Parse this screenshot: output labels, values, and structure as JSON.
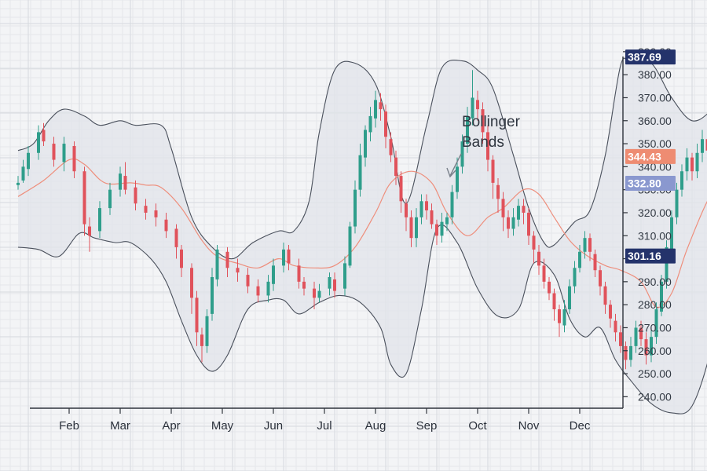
{
  "chart_data": {
    "type": "candlestick",
    "x": [
      "Feb",
      "Mar",
      "Apr",
      "May",
      "Jun",
      "Jul",
      "Aug",
      "Sep",
      "Oct",
      "Nov",
      "Dec"
    ],
    "y_ticks": [
      "240.00",
      "250.00",
      "260.00",
      "270.00",
      "280.00",
      "290.00",
      "300.00",
      "310.00",
      "320.00",
      "330.00",
      "340.00",
      "350.00",
      "360.00",
      "370.00",
      "380.00",
      "390.00"
    ],
    "ylim": [
      235,
      392
    ],
    "grid": true,
    "annotation": "Bollinger Bands",
    "price_labels": [
      {
        "value": "387.69",
        "color": "#24336b"
      },
      {
        "value": "344.43",
        "color": "#ee8c72"
      },
      {
        "value": "332.80",
        "color": "#8a98cf"
      },
      {
        "value": "301.16",
        "color": "#24336b"
      }
    ],
    "colors": {
      "up": "#2f9e8b",
      "down": "#e0525b",
      "middle_band": "#ee8e7c",
      "band_line": "#4a505c",
      "band_fill": "#e2e4ea"
    },
    "upper_band": [
      [
        0,
        347
      ],
      [
        0.3,
        350
      ],
      [
        0.6,
        360
      ],
      [
        0.9,
        365
      ],
      [
        1.3,
        362
      ],
      [
        1.6,
        358
      ],
      [
        2.0,
        360
      ],
      [
        2.3,
        358
      ],
      [
        2.8,
        358
      ],
      [
        3.0,
        348
      ],
      [
        3.4,
        318
      ],
      [
        3.8,
        305
      ],
      [
        4.2,
        300
      ],
      [
        4.6,
        307
      ],
      [
        5.1,
        312
      ],
      [
        5.4,
        312
      ],
      [
        5.7,
        325
      ],
      [
        5.9,
        355
      ],
      [
        6.2,
        382
      ],
      [
        6.6,
        385
      ],
      [
        7.0,
        376
      ],
      [
        7.3,
        353
      ],
      [
        7.6,
        324
      ],
      [
        8.0,
        358
      ],
      [
        8.3,
        383
      ],
      [
        8.7,
        386
      ],
      [
        9.0,
        382
      ],
      [
        9.3,
        374
      ],
      [
        9.7,
        345
      ],
      [
        10.0,
        322
      ],
      [
        10.3,
        307
      ],
      [
        10.5,
        306
      ],
      [
        10.9,
        316
      ],
      [
        11.2,
        321
      ],
      [
        11.5,
        345
      ],
      [
        11.8,
        384
      ],
      [
        12.0,
        385
      ],
      [
        12.4,
        385
      ],
      [
        12.8,
        370
      ],
      [
        13.2,
        360
      ],
      [
        13.6,
        365
      ],
      [
        14.0,
        376
      ],
      [
        14.3,
        383
      ],
      [
        14.6,
        388
      ],
      [
        14.8,
        387
      ]
    ],
    "middle_band": [
      [
        0,
        327
      ],
      [
        0.5,
        334
      ],
      [
        1.0,
        343
      ],
      [
        1.3,
        341
      ],
      [
        1.7,
        333
      ],
      [
        2.2,
        333
      ],
      [
        2.5,
        332
      ],
      [
        2.8,
        331
      ],
      [
        3.2,
        322
      ],
      [
        3.6,
        308
      ],
      [
        3.9,
        301
      ],
      [
        4.3,
        298
      ],
      [
        4.7,
        296
      ],
      [
        5.1,
        300
      ],
      [
        5.4,
        297
      ],
      [
        5.8,
        296
      ],
      [
        6.2,
        297
      ],
      [
        6.6,
        305
      ],
      [
        7.0,
        320
      ],
      [
        7.3,
        333
      ],
      [
        7.7,
        338
      ],
      [
        8.1,
        333
      ],
      [
        8.4,
        320
      ],
      [
        8.8,
        310
      ],
      [
        9.2,
        318
      ],
      [
        9.5,
        322
      ],
      [
        9.9,
        330
      ],
      [
        10.2,
        328
      ],
      [
        10.5,
        318
      ],
      [
        10.8,
        308
      ],
      [
        11.1,
        302
      ],
      [
        11.5,
        297
      ],
      [
        11.8,
        295
      ],
      [
        12.2,
        290
      ],
      [
        12.5,
        279
      ],
      [
        12.8,
        285
      ],
      [
        13.1,
        304
      ],
      [
        13.5,
        325
      ],
      [
        13.8,
        334
      ],
      [
        14.2,
        345
      ],
      [
        14.5,
        352
      ],
      [
        14.9,
        346
      ],
      [
        15.2,
        341
      ]
    ],
    "lower_band": [
      [
        0,
        305
      ],
      [
        0.4,
        304
      ],
      [
        0.8,
        301
      ],
      [
        1.2,
        311
      ],
      [
        1.5,
        309
      ],
      [
        1.9,
        307
      ],
      [
        2.2,
        307
      ],
      [
        2.6,
        300
      ],
      [
        2.9,
        290
      ],
      [
        3.2,
        273
      ],
      [
        3.5,
        258
      ],
      [
        3.8,
        251
      ],
      [
        4.1,
        258
      ],
      [
        4.5,
        278
      ],
      [
        4.9,
        282
      ],
      [
        5.2,
        282
      ],
      [
        5.5,
        276
      ],
      [
        5.9,
        281
      ],
      [
        6.3,
        284
      ],
      [
        6.7,
        281
      ],
      [
        7.1,
        270
      ],
      [
        7.3,
        254
      ],
      [
        7.6,
        250
      ],
      [
        7.9,
        278
      ],
      [
        8.2,
        313
      ],
      [
        8.6,
        307
      ],
      [
        9.0,
        287
      ],
      [
        9.4,
        275
      ],
      [
        9.8,
        278
      ],
      [
        10.1,
        298
      ],
      [
        10.5,
        293
      ],
      [
        10.8,
        274
      ],
      [
        11.1,
        266
      ],
      [
        11.4,
        270
      ],
      [
        11.7,
        256
      ],
      [
        12.0,
        247
      ],
      [
        12.4,
        237
      ],
      [
        12.8,
        233
      ],
      [
        13.2,
        236
      ],
      [
        13.6,
        263
      ],
      [
        14.0,
        308
      ],
      [
        14.2,
        317
      ],
      [
        14.5,
        325
      ],
      [
        14.8,
        322
      ],
      [
        15.2,
        310
      ],
      [
        15.5,
        301
      ]
    ],
    "candles": [
      [
        0,
        332,
        333,
        330,
        336
      ],
      [
        0.1,
        334,
        340,
        333,
        343
      ],
      [
        0.2,
        339,
        346,
        336,
        349
      ],
      [
        0.4,
        346,
        355,
        343,
        358
      ],
      [
        0.5,
        356,
        351,
        349,
        359
      ],
      [
        0.7,
        350,
        343,
        340,
        353
      ],
      [
        0.9,
        342,
        350,
        338,
        353
      ],
      [
        1.1,
        349,
        338,
        335,
        351
      ],
      [
        1.3,
        338,
        315,
        310,
        340
      ],
      [
        1.4,
        314,
        310,
        303,
        318
      ],
      [
        1.6,
        312,
        322,
        309,
        325
      ],
      [
        1.8,
        322,
        330,
        319,
        333
      ],
      [
        2.0,
        330,
        337,
        327,
        340
      ],
      [
        2.1,
        336,
        330,
        328,
        342
      ],
      [
        2.3,
        331,
        324,
        321,
        334
      ],
      [
        2.5,
        323,
        320,
        317,
        326
      ],
      [
        2.7,
        321,
        318,
        314,
        324
      ],
      [
        2.9,
        317,
        312,
        309,
        320
      ],
      [
        3.1,
        313,
        305,
        300,
        315
      ],
      [
        3.2,
        304,
        296,
        292,
        306
      ],
      [
        3.4,
        296,
        283,
        276,
        298
      ],
      [
        3.5,
        283,
        268,
        262,
        286
      ],
      [
        3.6,
        267,
        262,
        255,
        270
      ],
      [
        3.7,
        262,
        275,
        259,
        278
      ],
      [
        3.8,
        276,
        292,
        273,
        296
      ],
      [
        3.9,
        291,
        304,
        288,
        306
      ],
      [
        4.1,
        303,
        296,
        292,
        305
      ],
      [
        4.3,
        296,
        294,
        290,
        300
      ],
      [
        4.5,
        293,
        288,
        285,
        296
      ],
      [
        4.7,
        288,
        284,
        281,
        291
      ],
      [
        4.9,
        284,
        290,
        281,
        293
      ],
      [
        5.0,
        289,
        297,
        286,
        300
      ],
      [
        5.2,
        297,
        304,
        294,
        307
      ],
      [
        5.3,
        304,
        298,
        295,
        306
      ],
      [
        5.5,
        297,
        290,
        287,
        300
      ],
      [
        5.6,
        290,
        287,
        284,
        292
      ],
      [
        5.8,
        287,
        283,
        278,
        290
      ],
      [
        5.9,
        283,
        286,
        281,
        289
      ],
      [
        6.1,
        287,
        292,
        284,
        294
      ],
      [
        6.2,
        291,
        286,
        283,
        294
      ],
      [
        6.4,
        287,
        298,
        284,
        301
      ],
      [
        6.5,
        297,
        314,
        296,
        316
      ],
      [
        6.6,
        314,
        330,
        311,
        334
      ],
      [
        6.7,
        330,
        345,
        327,
        350
      ],
      [
        6.8,
        344,
        356,
        340,
        358
      ],
      [
        6.9,
        355,
        362,
        351,
        366
      ],
      [
        7.0,
        361,
        369,
        357,
        373
      ],
      [
        7.1,
        368,
        365,
        360,
        372
      ],
      [
        7.2,
        364,
        353,
        348,
        367
      ],
      [
        7.3,
        352,
        345,
        342,
        355
      ],
      [
        7.4,
        344,
        336,
        332,
        347
      ],
      [
        7.5,
        336,
        325,
        320,
        338
      ],
      [
        7.6,
        324,
        318,
        312,
        326
      ],
      [
        7.7,
        318,
        309,
        305,
        321
      ],
      [
        7.8,
        309,
        318,
        305,
        322
      ],
      [
        7.9,
        318,
        325,
        315,
        328
      ],
      [
        8.0,
        325,
        321,
        317,
        328
      ],
      [
        8.1,
        321,
        315,
        313,
        324
      ],
      [
        8.2,
        315,
        310,
        306,
        317
      ],
      [
        8.3,
        310,
        316,
        307,
        320
      ],
      [
        8.4,
        315,
        318,
        312,
        320
      ],
      [
        8.5,
        318,
        329,
        315,
        332
      ],
      [
        8.6,
        329,
        340,
        326,
        344
      ],
      [
        8.7,
        340,
        351,
        337,
        354
      ],
      [
        8.8,
        350,
        362,
        346,
        366
      ],
      [
        8.9,
        361,
        370,
        358,
        382
      ],
      [
        9.0,
        369,
        365,
        360,
        373
      ],
      [
        9.1,
        365,
        355,
        350,
        368
      ],
      [
        9.2,
        355,
        343,
        338,
        358
      ],
      [
        9.3,
        343,
        333,
        326,
        345
      ],
      [
        9.4,
        332,
        326,
        320,
        335
      ],
      [
        9.5,
        326,
        318,
        312,
        329
      ],
      [
        9.6,
        318,
        313,
        309,
        321
      ],
      [
        9.7,
        313,
        318,
        310,
        322
      ],
      [
        9.8,
        317,
        323,
        314,
        326
      ],
      [
        9.9,
        323,
        320,
        315,
        326
      ],
      [
        10.0,
        320,
        310,
        306,
        322
      ],
      [
        10.1,
        310,
        304,
        298,
        312
      ],
      [
        10.2,
        303,
        297,
        293,
        306
      ],
      [
        10.3,
        297,
        290,
        287,
        300
      ],
      [
        10.4,
        290,
        285,
        282,
        292
      ],
      [
        10.5,
        285,
        278,
        273,
        287
      ],
      [
        10.6,
        278,
        272,
        266,
        280
      ],
      [
        10.7,
        271,
        278,
        268,
        282
      ],
      [
        10.8,
        278,
        288,
        276,
        291
      ],
      [
        10.9,
        288,
        296,
        285,
        299
      ],
      [
        11.0,
        296,
        303,
        294,
        306
      ],
      [
        11.1,
        303,
        309,
        300,
        312
      ],
      [
        11.2,
        309,
        303,
        299,
        311
      ],
      [
        11.3,
        302,
        295,
        292,
        304
      ],
      [
        11.4,
        295,
        288,
        284,
        297
      ],
      [
        11.5,
        288,
        280,
        276,
        290
      ],
      [
        11.6,
        280,
        274,
        270,
        282
      ],
      [
        11.7,
        273,
        268,
        264,
        276
      ],
      [
        11.8,
        268,
        262,
        259,
        271
      ],
      [
        11.9,
        262,
        256,
        252,
        264
      ],
      [
        12.0,
        256,
        262,
        253,
        266
      ],
      [
        12.1,
        262,
        270,
        259,
        273
      ],
      [
        12.2,
        270,
        265,
        262,
        273
      ],
      [
        12.3,
        265,
        258,
        254,
        268
      ],
      [
        12.4,
        258,
        266,
        255,
        270
      ],
      [
        12.5,
        266,
        278,
        263,
        281
      ],
      [
        12.6,
        277,
        290,
        275,
        293
      ],
      [
        12.7,
        290,
        305,
        287,
        308
      ],
      [
        12.8,
        304,
        318,
        301,
        321
      ],
      [
        12.9,
        318,
        330,
        315,
        333
      ],
      [
        13.0,
        330,
        338,
        327,
        341
      ],
      [
        13.1,
        338,
        344,
        334,
        348
      ],
      [
        13.2,
        344,
        338,
        334,
        346
      ],
      [
        13.3,
        338,
        346,
        335,
        350
      ],
      [
        13.4,
        346,
        352,
        342,
        356
      ],
      [
        13.5,
        352,
        347,
        342,
        355
      ],
      [
        13.6,
        347,
        340,
        336,
        350
      ],
      [
        13.7,
        340,
        333,
        329,
        343
      ],
      [
        13.8,
        333,
        326,
        322,
        336
      ],
      [
        13.9,
        326,
        334,
        324,
        338
      ],
      [
        14.0,
        334,
        342,
        331,
        346
      ],
      [
        14.1,
        342,
        350,
        339,
        354
      ],
      [
        14.2,
        350,
        357,
        347,
        360
      ],
      [
        14.3,
        357,
        364,
        354,
        368
      ],
      [
        14.4,
        364,
        370,
        360,
        374
      ],
      [
        14.5,
        370,
        362,
        358,
        373
      ],
      [
        14.6,
        362,
        350,
        346,
        365
      ],
      [
        14.7,
        350,
        338,
        333,
        353
      ],
      [
        14.8,
        338,
        325,
        318,
        340
      ],
      [
        14.9,
        325,
        312,
        305,
        328
      ],
      [
        15.0,
        312,
        298,
        294,
        315
      ],
      [
        15.1,
        298,
        306,
        295,
        310
      ],
      [
        15.2,
        306,
        318,
        303,
        322
      ],
      [
        15.3,
        318,
        330,
        315,
        333
      ],
      [
        15.4,
        330,
        337,
        327,
        340
      ]
    ]
  }
}
